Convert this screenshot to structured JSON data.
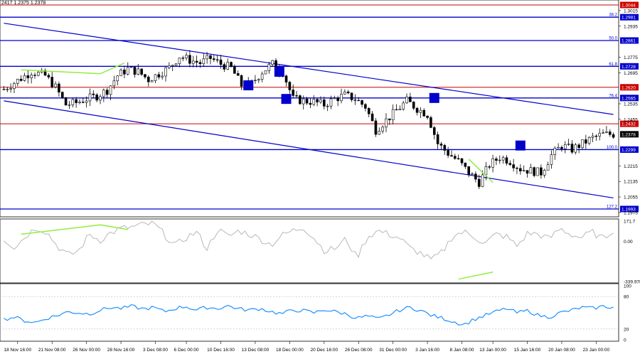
{
  "header": {
    "readout": "2417 1.2375 1.2378"
  },
  "colors": {
    "background": "#ffffff",
    "candle": "#000000",
    "blue_level": "#0000cc",
    "red_level": "#cc0000",
    "channel": "#0000cc",
    "divergence": "#90ee40",
    "marker": "#0000cc",
    "cci": "#b8b8b8",
    "rsi": "#1e90ff",
    "price_badge": "#000000"
  },
  "chart_data": [
    {
      "type": "candlestick",
      "title": "",
      "ylim": [
        1.196,
        1.3055
      ],
      "x_ticks": [
        "18 Nov 16:00",
        "21 Nov 08:00",
        "26 Nov 00:00",
        "28 Nov 16:00",
        "3 Dec 08:00",
        "6 Dec 00:00",
        "10 Dec 16:00",
        "13 Dec 08:00",
        "18 Dec 00:00",
        "20 Dec 16:00",
        "26 Dec 08:00",
        "31 Dec 00:00",
        "3 Jan 16:00",
        "8 Jan 08:00",
        "13 Jan 00:00",
        "15 Jan 16:00",
        "20 Jan 08:00",
        "23 Jan 00:00"
      ],
      "y_ticks": [
        "1.3015",
        "1.2935",
        "1.2775",
        "1.2695",
        "1.2535",
        "1.2455",
        "1.2215",
        "1.2135",
        "1.2055",
        "1.1975"
      ],
      "current_price": "1.2378",
      "close_path": [
        [
          0,
          1.261
        ],
        [
          4,
          1.2655
        ],
        [
          8,
          1.27
        ],
        [
          12,
          1.268
        ],
        [
          15,
          1.262
        ],
        [
          18,
          1.253
        ],
        [
          21,
          1.254
        ],
        [
          24,
          1.256
        ],
        [
          27,
          1.2575
        ],
        [
          30,
          1.2605
        ],
        [
          33,
          1.268
        ],
        [
          36,
          1.2715
        ],
        [
          39,
          1.27
        ],
        [
          42,
          1.266
        ],
        [
          45,
          1.269
        ],
        [
          48,
          1.272
        ],
        [
          51,
          1.278
        ],
        [
          54,
          1.276
        ],
        [
          57,
          1.2745
        ],
        [
          60,
          1.277
        ],
        [
          63,
          1.274
        ],
        [
          66,
          1.272
        ],
        [
          69,
          1.263
        ],
        [
          72,
          1.264
        ],
        [
          75,
          1.27
        ],
        [
          78,
          1.274
        ],
        [
          81,
          1.27
        ],
        [
          84,
          1.256
        ],
        [
          87,
          1.255
        ],
        [
          90,
          1.2545
        ],
        [
          93,
          1.253
        ],
        [
          96,
          1.256
        ],
        [
          99,
          1.258
        ],
        [
          102,
          1.256
        ],
        [
          105,
          1.252
        ],
        [
          108,
          1.24
        ],
        [
          111,
          1.245
        ],
        [
          114,
          1.25
        ],
        [
          117,
          1.255
        ],
        [
          120,
          1.251
        ],
        [
          123,
          1.248
        ],
        [
          126,
          1.233
        ],
        [
          129,
          1.228
        ],
        [
          132,
          1.224
        ],
        [
          135,
          1.218
        ],
        [
          138,
          1.213
        ],
        [
          141,
          1.222
        ],
        [
          144,
          1.226
        ],
        [
          147,
          1.224
        ],
        [
          150,
          1.22
        ],
        [
          153,
          1.219
        ],
        [
          156,
          1.218
        ],
        [
          159,
          1.227
        ],
        [
          162,
          1.232
        ],
        [
          165,
          1.23
        ],
        [
          168,
          1.233
        ],
        [
          171,
          1.236
        ],
        [
          174,
          1.2378
        ]
      ],
      "levels": [
        {
          "label": "1.3044",
          "value": 1.3044,
          "fib": "",
          "color": "red"
        },
        {
          "label": "1.2981",
          "value": 1.2981,
          "fib": "38.2",
          "color": "blue"
        },
        {
          "label": "1.2861",
          "value": 1.2861,
          "fib": "50.0",
          "color": "blue"
        },
        {
          "label": "1.2728",
          "value": 1.2728,
          "fib": "61.8",
          "color": "blue"
        },
        {
          "label": "1.2620",
          "value": 1.262,
          "fib": "",
          "color": "red"
        },
        {
          "label": "1.2565",
          "value": 1.2565,
          "fib": "76.4",
          "color": "blue"
        },
        {
          "label": "1.2432",
          "value": 1.2432,
          "fib": "",
          "color": "red"
        },
        {
          "label": "1.2299",
          "value": 1.2299,
          "fib": "100.0",
          "color": "blue"
        },
        {
          "label": "1.1993",
          "value": 1.1993,
          "fib": "127.2",
          "color": "blue"
        }
      ],
      "channel": {
        "upper": [
          [
            0,
            1.295
          ],
          [
            177,
            1.248
          ]
        ],
        "lower": [
          [
            0,
            1.255
          ],
          [
            177,
            1.205
          ]
        ]
      },
      "divergence_lines": [
        {
          "from": [
            5,
            1.271
          ],
          "to": [
            28,
            1.269
          ]
        },
        {
          "from": [
            28,
            1.269
          ],
          "to": [
            35,
            1.2745
          ]
        },
        {
          "from": [
            135,
            1.225
          ],
          "to": [
            142,
            1.213
          ]
        }
      ],
      "markers": [
        {
          "x": 71,
          "y": 1.263
        },
        {
          "x": 80,
          "y": 1.27
        },
        {
          "x": 82,
          "y": 1.256
        },
        {
          "x": 125,
          "y": 1.2565
        },
        {
          "x": 150,
          "y": 1.232
        }
      ]
    },
    {
      "type": "line",
      "title": "",
      "indicator": "CCI",
      "ylim": [
        -339.978,
        171.7
      ],
      "y_ticks": [
        "171.7",
        "0.00",
        "-339.978"
      ],
      "series": [
        {
          "name": "",
          "values": [
            20,
            -50,
            40,
            120,
            80,
            -40,
            -120,
            -80,
            60,
            10,
            70,
            110,
            120,
            140,
            150,
            60,
            -40,
            30,
            80,
            -60,
            100,
            40,
            90,
            60,
            20,
            -30,
            50,
            90,
            120,
            30,
            -80,
            -60,
            20,
            -140,
            40,
            90,
            60,
            30,
            -60,
            -100,
            -160,
            -90,
            50,
            80,
            40,
            -20,
            60,
            40,
            -40,
            70,
            60,
            20,
            110,
            60,
            30,
            80,
            20,
            100
          ]
        }
      ],
      "divergence_lines": [
        {
          "from": [
            5,
            60
          ],
          "to": [
            28,
            140
          ]
        },
        {
          "from": [
            28,
            140
          ],
          "to": [
            36,
            100
          ]
        },
        {
          "from": [
            132,
            -320
          ],
          "to": [
            142,
            -260
          ]
        }
      ]
    },
    {
      "type": "line",
      "title": "",
      "indicator": "RSI",
      "ylim": [
        0,
        100
      ],
      "y_ticks": [
        "100",
        "80",
        "20",
        "0"
      ],
      "series": [
        {
          "name": "",
          "values": [
            38,
            42,
            35,
            32,
            40,
            45,
            52,
            50,
            48,
            55,
            60,
            58,
            62,
            57,
            60,
            52,
            58,
            62,
            55,
            60,
            58,
            63,
            57,
            55,
            58,
            52,
            48,
            55,
            54,
            50,
            56,
            52,
            48,
            40,
            44,
            38,
            46,
            55,
            60,
            54,
            45,
            40,
            34,
            28,
            38,
            45,
            52,
            58,
            50,
            54,
            45,
            42,
            50,
            54,
            60,
            58,
            62,
            60
          ]
        }
      ]
    }
  ]
}
